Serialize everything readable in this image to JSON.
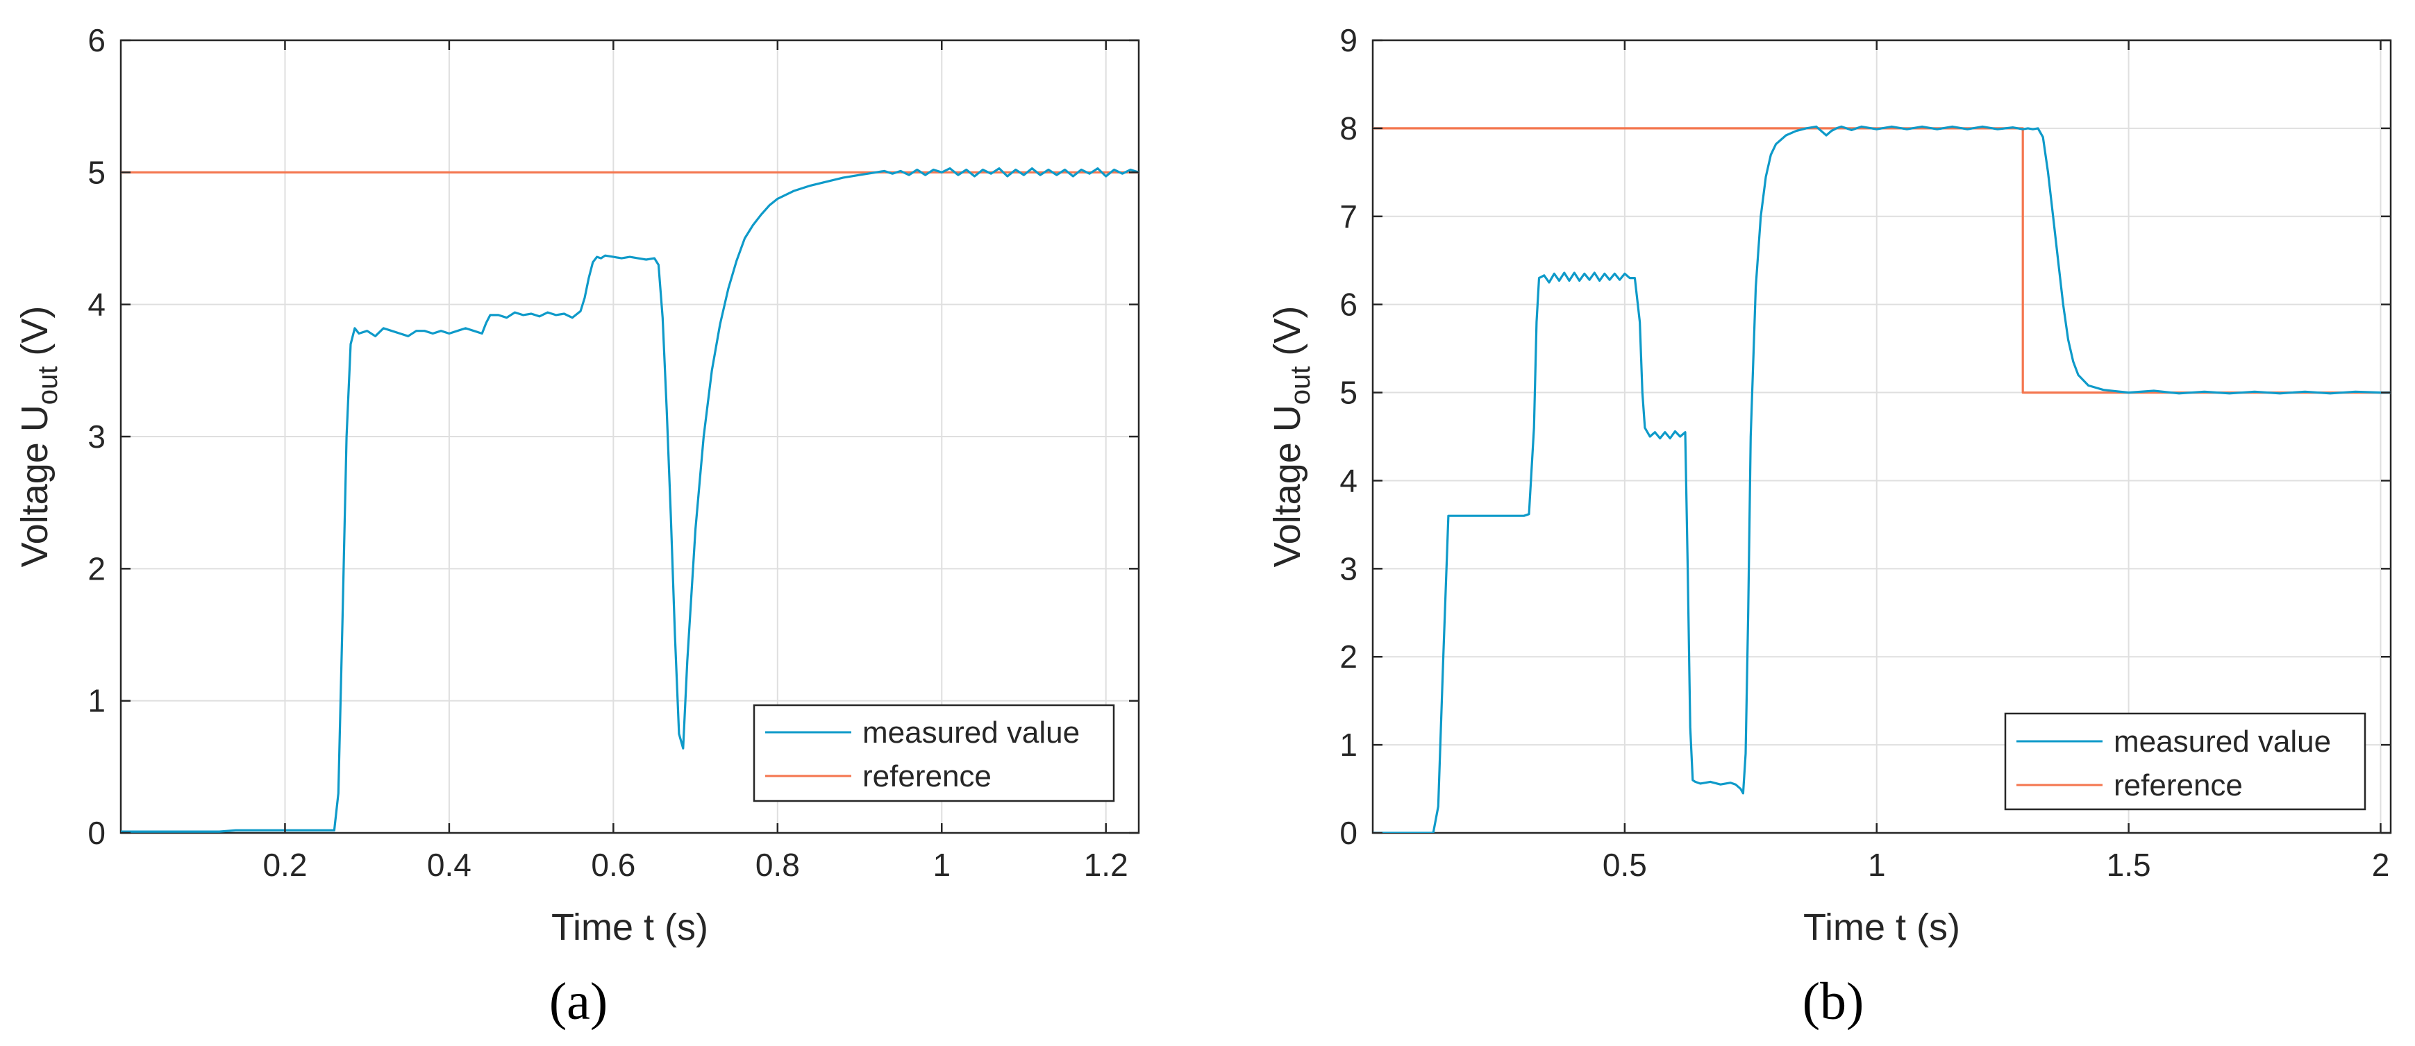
{
  "colors": {
    "measured": "#0E9AC9",
    "reference": "#F4764F",
    "grid": "#DFDFDF",
    "axis": "#262626"
  },
  "chart_data": [
    {
      "type": "line",
      "panel_label": "(a)",
      "xlabel": "Time t (s)",
      "ylabel": "Voltage U",
      "ylabel_sub": "out",
      "ylabel_unit": " (V)",
      "xlim": [
        0.0,
        1.24
      ],
      "ylim": [
        0,
        6
      ],
      "xticks": [
        0.2,
        0.4,
        0.6,
        0.8,
        1.0,
        1.2
      ],
      "xtick_labels": [
        "0.2",
        "0.4",
        "0.6",
        "0.8",
        "1",
        "1.2"
      ],
      "yticks": [
        0,
        1,
        2,
        3,
        4,
        5,
        6
      ],
      "ytick_labels": [
        "0",
        "1",
        "2",
        "3",
        "4",
        "5",
        "6"
      ],
      "grid": true,
      "legend": {
        "position": "bottom-right",
        "entries": [
          "measured value",
          "reference"
        ]
      },
      "series": [
        {
          "name": "measured value",
          "x": [
            0.0,
            0.12,
            0.14,
            0.16,
            0.2,
            0.22,
            0.24,
            0.26,
            0.265,
            0.27,
            0.275,
            0.28,
            0.285,
            0.29,
            0.3,
            0.31,
            0.32,
            0.33,
            0.34,
            0.35,
            0.36,
            0.37,
            0.38,
            0.39,
            0.4,
            0.41,
            0.42,
            0.43,
            0.44,
            0.445,
            0.45,
            0.46,
            0.47,
            0.48,
            0.49,
            0.5,
            0.51,
            0.52,
            0.53,
            0.54,
            0.55,
            0.56,
            0.565,
            0.57,
            0.575,
            0.58,
            0.585,
            0.59,
            0.6,
            0.61,
            0.62,
            0.63,
            0.64,
            0.65,
            0.655,
            0.66,
            0.665,
            0.67,
            0.675,
            0.68,
            0.685,
            0.69,
            0.7,
            0.71,
            0.72,
            0.73,
            0.74,
            0.75,
            0.76,
            0.77,
            0.78,
            0.79,
            0.8,
            0.82,
            0.84,
            0.86,
            0.88,
            0.9,
            0.91,
            0.92,
            0.93,
            0.94,
            0.95,
            0.96,
            0.97,
            0.98,
            0.99,
            1.0,
            1.01,
            1.02,
            1.03,
            1.04,
            1.05,
            1.06,
            1.07,
            1.08,
            1.09,
            1.1,
            1.11,
            1.12,
            1.13,
            1.14,
            1.15,
            1.16,
            1.17,
            1.18,
            1.19,
            1.2,
            1.21,
            1.22,
            1.23,
            1.24
          ],
          "y": [
            0.01,
            0.01,
            0.02,
            0.02,
            0.02,
            0.02,
            0.02,
            0.02,
            0.3,
            1.6,
            3.0,
            3.7,
            3.82,
            3.78,
            3.8,
            3.76,
            3.82,
            3.8,
            3.78,
            3.76,
            3.8,
            3.8,
            3.78,
            3.8,
            3.78,
            3.8,
            3.82,
            3.8,
            3.78,
            3.86,
            3.92,
            3.92,
            3.9,
            3.94,
            3.92,
            3.93,
            3.91,
            3.94,
            3.92,
            3.93,
            3.9,
            3.95,
            4.05,
            4.2,
            4.32,
            4.36,
            4.35,
            4.37,
            4.36,
            4.35,
            4.36,
            4.35,
            4.34,
            4.35,
            4.3,
            3.9,
            3.2,
            2.4,
            1.5,
            0.75,
            0.64,
            1.3,
            2.3,
            3.0,
            3.5,
            3.85,
            4.12,
            4.33,
            4.5,
            4.6,
            4.68,
            4.75,
            4.8,
            4.86,
            4.9,
            4.93,
            4.96,
            4.98,
            4.99,
            5.0,
            5.01,
            4.99,
            5.01,
            4.98,
            5.02,
            4.98,
            5.02,
            5.0,
            5.03,
            4.98,
            5.02,
            4.97,
            5.02,
            4.99,
            5.03,
            4.97,
            5.02,
            4.98,
            5.03,
            4.98,
            5.02,
            4.98,
            5.02,
            4.97,
            5.02,
            4.99,
            5.03,
            4.97,
            5.02,
            4.99,
            5.02,
            5.0
          ]
        },
        {
          "name": "reference",
          "x": [
            0.0,
            1.24
          ],
          "y": [
            5,
            5
          ]
        }
      ]
    },
    {
      "type": "line",
      "panel_label": "(b)",
      "xlabel": "Time t (s)",
      "ylabel": "Voltage U",
      "ylabel_sub": "out",
      "ylabel_unit": " (V)",
      "xlim": [
        0.0,
        2.02
      ],
      "ylim": [
        0,
        9
      ],
      "xticks": [
        0.5,
        1.0,
        1.5,
        2.0
      ],
      "xtick_labels": [
        "0.5",
        "1",
        "1.5",
        "2"
      ],
      "yticks": [
        0,
        1,
        2,
        3,
        4,
        5,
        6,
        7,
        8,
        9
      ],
      "ytick_labels": [
        "0",
        "1",
        "2",
        "3",
        "4",
        "5",
        "6",
        "7",
        "8",
        "9"
      ],
      "grid": true,
      "legend": {
        "position": "bottom-right",
        "entries": [
          "measured value",
          "reference"
        ]
      },
      "series": [
        {
          "name": "measured value",
          "x": [
            0.0,
            0.1,
            0.12,
            0.13,
            0.14,
            0.15,
            0.2,
            0.25,
            0.3,
            0.31,
            0.32,
            0.325,
            0.33,
            0.34,
            0.35,
            0.36,
            0.37,
            0.38,
            0.39,
            0.4,
            0.41,
            0.42,
            0.43,
            0.44,
            0.45,
            0.46,
            0.47,
            0.48,
            0.49,
            0.5,
            0.51,
            0.52,
            0.53,
            0.535,
            0.54,
            0.55,
            0.56,
            0.57,
            0.58,
            0.59,
            0.6,
            0.61,
            0.62,
            0.625,
            0.63,
            0.635,
            0.64,
            0.65,
            0.67,
            0.69,
            0.71,
            0.72,
            0.73,
            0.735,
            0.74,
            0.745,
            0.75,
            0.76,
            0.77,
            0.78,
            0.79,
            0.8,
            0.82,
            0.84,
            0.86,
            0.88,
            0.9,
            0.91,
            0.92,
            0.93,
            0.95,
            0.97,
            1.0,
            1.03,
            1.06,
            1.09,
            1.12,
            1.15,
            1.18,
            1.21,
            1.24,
            1.27,
            1.29,
            1.3,
            1.31,
            1.32,
            1.33,
            1.34,
            1.35,
            1.36,
            1.37,
            1.38,
            1.39,
            1.4,
            1.42,
            1.45,
            1.5,
            1.55,
            1.6,
            1.65,
            1.7,
            1.75,
            1.8,
            1.85,
            1.9,
            1.95,
            2.0,
            2.02
          ],
          "y": [
            0.0,
            0.0,
            0.0,
            0.3,
            2.0,
            3.6,
            3.6,
            3.6,
            3.6,
            3.62,
            4.6,
            5.8,
            6.3,
            6.33,
            6.25,
            6.35,
            6.27,
            6.36,
            6.27,
            6.36,
            6.27,
            6.35,
            6.28,
            6.36,
            6.27,
            6.35,
            6.28,
            6.35,
            6.28,
            6.35,
            6.3,
            6.3,
            5.8,
            5.0,
            4.6,
            4.5,
            4.55,
            4.48,
            4.55,
            4.48,
            4.56,
            4.5,
            4.55,
            3.0,
            1.2,
            0.6,
            0.58,
            0.56,
            0.58,
            0.55,
            0.57,
            0.55,
            0.5,
            0.45,
            0.9,
            2.5,
            4.5,
            6.2,
            7.0,
            7.45,
            7.7,
            7.82,
            7.92,
            7.97,
            8.0,
            8.02,
            7.92,
            7.97,
            8.0,
            8.02,
            7.98,
            8.02,
            7.99,
            8.02,
            7.99,
            8.02,
            7.99,
            8.02,
            7.99,
            8.02,
            7.99,
            8.01,
            7.99,
            8.0,
            7.99,
            8.0,
            7.9,
            7.5,
            7.0,
            6.5,
            6.0,
            5.6,
            5.35,
            5.2,
            5.08,
            5.03,
            5.0,
            5.02,
            4.99,
            5.01,
            4.99,
            5.01,
            4.99,
            5.01,
            4.99,
            5.01,
            5.0,
            5.0
          ]
        },
        {
          "name": "reference",
          "x": [
            0.0,
            1.29,
            1.29,
            2.02
          ],
          "y": [
            8,
            8,
            5,
            5
          ]
        }
      ]
    }
  ]
}
